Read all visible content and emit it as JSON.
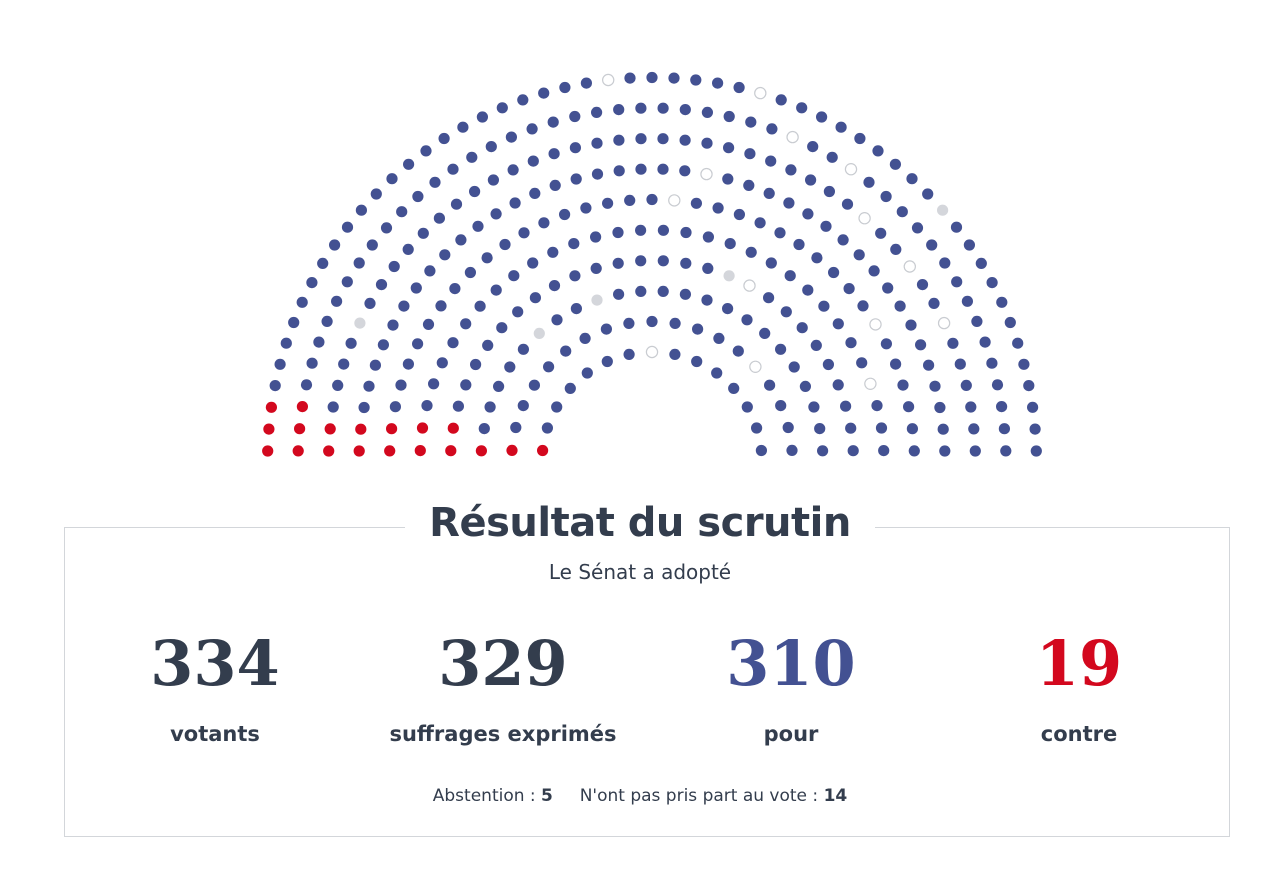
{
  "colors": {
    "pour": "#435192",
    "contre": "#d3081e",
    "abstention": "#d4d6db",
    "npp": "#ffffff",
    "npp_border": "#c9ccd1",
    "text": "#333d4d"
  },
  "hemicycle": {
    "total_seats": 348,
    "pour": 310,
    "contre": 19,
    "abstention": 5,
    "non_votants": 14
  },
  "result": {
    "title": "Résultat du scrutin",
    "subtitle": "Le Sénat a adopté",
    "stats": [
      {
        "value": "334",
        "label": "votants",
        "color": "#333d4d"
      },
      {
        "value": "329",
        "label": "suffrages exprimés",
        "color": "#333d4d"
      },
      {
        "value": "310",
        "label": "pour",
        "color": "#435192"
      },
      {
        "value": "19",
        "label": "contre",
        "color": "#d3081e"
      }
    ],
    "abstention_label": "Abstention :",
    "abstention_value": "5",
    "npp_label": "N'ont pas pris part au vote :",
    "npp_value": "14"
  }
}
